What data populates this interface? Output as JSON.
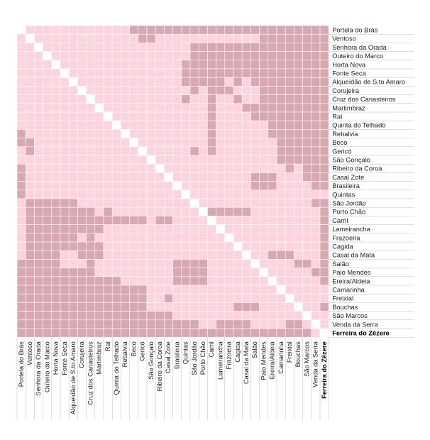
{
  "chart_data": {
    "type": "heatmap",
    "labels": [
      "Portela do Brás",
      "Ventoso",
      "Senhora da Orada",
      "Outeiro do Marco",
      "Horta Nova",
      "Fonte Seca",
      "Alqueidão de S.to Amaro",
      "Corujeira",
      "Cruz dos Canasteiros",
      "Martimbraz",
      "Ral",
      "Quinta do Telhado",
      "Rebalvia",
      "Beco",
      "Gericó",
      "São Gonçalo",
      "Ribeiro da Coroa",
      "Casal Zote",
      "Brasileira",
      "Quintas",
      "São Jordão",
      "Porto Chão",
      "Carril",
      "Lameirancha",
      "Frazoeira",
      "Cagida",
      "Casal da Mata",
      "Salão",
      "Paio Mendes",
      "Ereira/Aldeia",
      "Camarinha",
      "Freixial",
      "Bouchas",
      "São Marcos",
      "Venda da Serra",
      "Ferreira do Zêzere"
    ],
    "bold_label": "Ferreira do Zêzere",
    "levels": {
      "none": 0,
      "low": 1,
      "high": 2
    },
    "colors": {
      "diagonal": "#ffffff",
      "low": "#fbd4de",
      "high": "#d7a7b2",
      "grid": "#ffffff",
      "leader": "#bbbbbb"
    },
    "matrix": [
      "011111111111122222222222222222222222",
      "101111111111112211111111111122222222",
      "110111111111111111112222222222222222",
      "111011111111111111112222222222222222",
      "111101111111111111122222222222222222",
      "111110111111111111122222222222222222",
      "111111011111111111122222121222222222",
      "111111101111111111112122211122222222",
      "111111110111111111121121121122222222",
      "111111111011111111111121112222222222",
      "111111111101111111111121111222222222",
      "111111111110111111111121111112222222",
      "211111111111011111111121111112222222",
      "221111111111101111111121111111222222",
      "121111111111110111112121111111222222",
      "111111111111111011111111111111222222",
      "211111111111111101111111111111121222",
      "211111111111111110111111111222111222",
      "211111111111111111011111111222111122",
      "211111111111111111101111111111111111",
      "122222211111111111110111111111111122",
      "122222222121111111111022222111111112",
      "122222222222222122111101111111111112",
      "122222222211111111111110111111111112",
      "122222212111111111111111011111111112",
      "122222222211111111111111101111111112",
      "122221122211111111111111110112221112",
      "222221112111111111222211111011112212",
      "222222222111111111222211111101111122",
      "222222222222111111222211111110111112",
      "222222222222222111111111111111011111",
      "222222222222222112111111111111101111",
      "222222222222222111111111122211110112",
      "222222222222222222111111111111111011",
      "222222222222222222222112222111122101",
      "222222222222222222222222222222222210"
    ]
  }
}
